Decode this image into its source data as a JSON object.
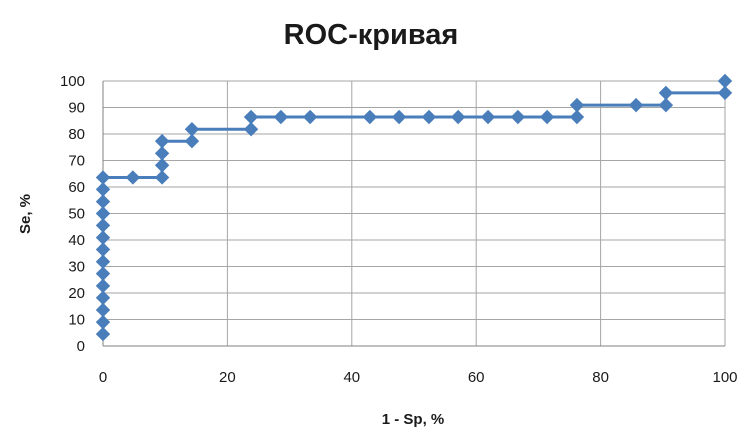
{
  "chart_data": {
    "type": "line",
    "title": "ROC-кривая",
    "xlabel": "1 - Sp, %",
    "ylabel": "Se, %",
    "xlim": [
      0,
      100
    ],
    "ylim": [
      0,
      100
    ],
    "x_ticks": [
      0,
      20,
      40,
      60,
      80,
      100
    ],
    "y_ticks": [
      0,
      10,
      20,
      30,
      40,
      50,
      60,
      70,
      80,
      90,
      100
    ],
    "grid": true,
    "legend": "none",
    "series": [
      {
        "color": "#4a7ebb",
        "marker": "diamond",
        "step": true,
        "points": [
          [
            0,
            4.5
          ],
          [
            0,
            9
          ],
          [
            0,
            13.6
          ],
          [
            0,
            18.2
          ],
          [
            0,
            22.7
          ],
          [
            0,
            27.3
          ],
          [
            0,
            31.8
          ],
          [
            0,
            36.4
          ],
          [
            0,
            40.9
          ],
          [
            0,
            45.5
          ],
          [
            0,
            50
          ],
          [
            0,
            54.5
          ],
          [
            0,
            59.1
          ],
          [
            0,
            63.6
          ],
          [
            4.8,
            63.6
          ],
          [
            9.5,
            63.6
          ],
          [
            9.5,
            68.2
          ],
          [
            9.5,
            72.7
          ],
          [
            9.5,
            77.3
          ],
          [
            14.3,
            77.3
          ],
          [
            14.3,
            81.8
          ],
          [
            23.8,
            81.8
          ],
          [
            23.8,
            86.4
          ],
          [
            28.6,
            86.4
          ],
          [
            33.3,
            86.4
          ],
          [
            42.9,
            86.4
          ],
          [
            47.6,
            86.4
          ],
          [
            52.4,
            86.4
          ],
          [
            57.1,
            86.4
          ],
          [
            61.9,
            86.4
          ],
          [
            66.7,
            86.4
          ],
          [
            71.4,
            86.4
          ],
          [
            76.2,
            86.4
          ],
          [
            76.2,
            90.9
          ],
          [
            85.7,
            90.9
          ],
          [
            90.5,
            90.9
          ],
          [
            90.5,
            95.5
          ],
          [
            100,
            95.5
          ],
          [
            100,
            100
          ]
        ]
      }
    ]
  }
}
